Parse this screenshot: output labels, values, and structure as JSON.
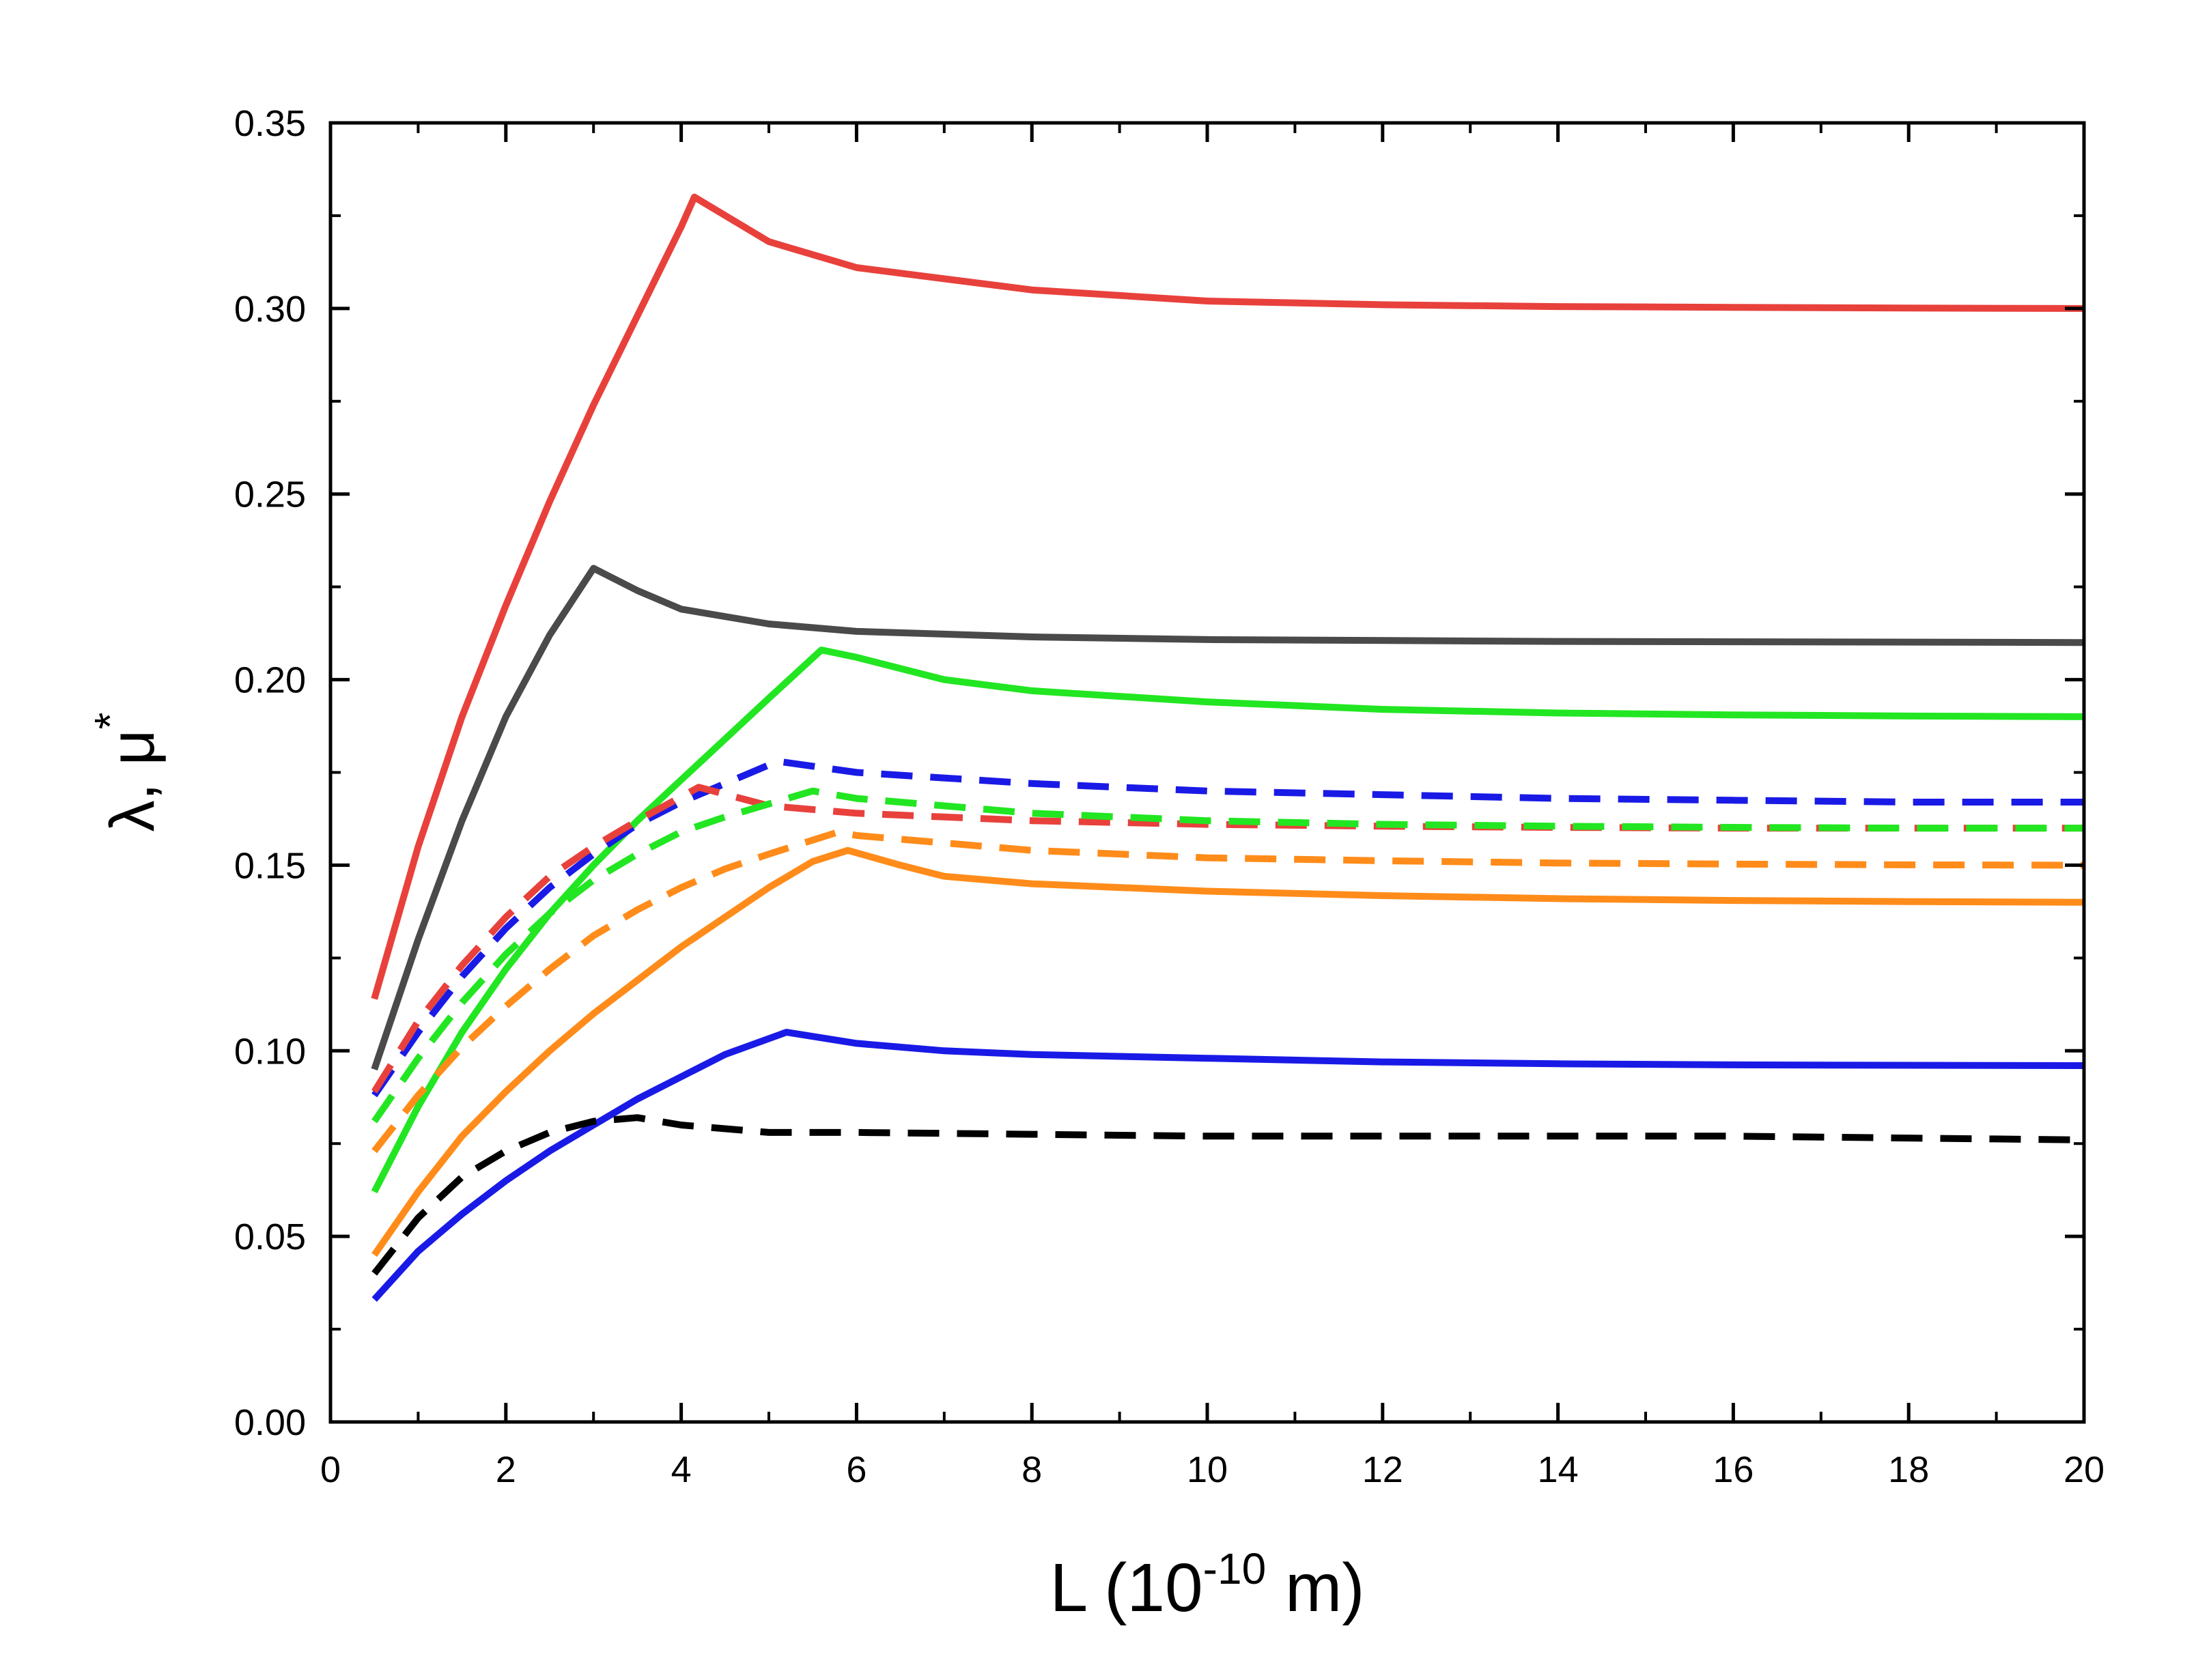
{
  "chart_data": {
    "type": "line",
    "title": "",
    "xlabel": {
      "main": "L  (10",
      "sup": "-10",
      "tail": " m)"
    },
    "ylabel": {
      "main": "λ, μ",
      "sup": "*"
    },
    "xlim": [
      0,
      20
    ],
    "ylim": [
      0,
      0.35
    ],
    "x_ticks": [
      0,
      2,
      4,
      6,
      8,
      10,
      12,
      14,
      16,
      18,
      20
    ],
    "x_tick_labels": [
      "0",
      "2",
      "4",
      "6",
      "8",
      "10",
      "12",
      "14",
      "16",
      "18",
      "20"
    ],
    "y_ticks": [
      0,
      0.05,
      0.1,
      0.15,
      0.2,
      0.25,
      0.3,
      0.35
    ],
    "y_tick_labels": [
      "0.00",
      "0.05",
      "0.10",
      "0.15",
      "0.20",
      "0.25",
      "0.30",
      "0.35"
    ],
    "grid": false,
    "legend": "none",
    "series": [
      {
        "name": "red-solid",
        "color": "#e8413c",
        "style": "solid",
        "x": [
          0.5,
          1,
          1.5,
          2,
          2.5,
          3,
          3.5,
          4,
          4.15,
          5,
          6,
          8,
          10,
          12,
          14,
          16,
          18,
          20
        ],
        "y": [
          0.114,
          0.155,
          0.19,
          0.22,
          0.248,
          0.274,
          0.298,
          0.322,
          0.33,
          0.318,
          0.311,
          0.305,
          0.302,
          0.301,
          0.3005,
          0.3003,
          0.3001,
          0.3
        ]
      },
      {
        "name": "gray-solid",
        "color": "#4a4a4a",
        "style": "solid",
        "x": [
          0.5,
          1,
          1.5,
          2,
          2.5,
          3,
          3.5,
          4,
          5,
          6,
          8,
          10,
          14,
          20
        ],
        "y": [
          0.095,
          0.13,
          0.162,
          0.19,
          0.212,
          0.23,
          0.224,
          0.219,
          0.215,
          0.213,
          0.2115,
          0.2108,
          0.2103,
          0.21
        ]
      },
      {
        "name": "green-solid",
        "color": "#22e622",
        "style": "solid",
        "x": [
          0.5,
          1,
          1.5,
          2,
          2.5,
          3,
          3.5,
          4,
          4.5,
          5,
          5.6,
          6,
          7,
          8,
          10,
          12,
          14,
          16,
          18,
          20
        ],
        "y": [
          0.062,
          0.085,
          0.105,
          0.122,
          0.137,
          0.15,
          0.162,
          0.173,
          0.184,
          0.195,
          0.208,
          0.206,
          0.2,
          0.197,
          0.194,
          0.192,
          0.191,
          0.1905,
          0.1902,
          0.19
        ]
      },
      {
        "name": "blue-dashed",
        "color": "#1a1ae6",
        "style": "dashed",
        "x": [
          0.5,
          1,
          1.5,
          2,
          2.5,
          3,
          3.5,
          4,
          4.5,
          5.1,
          6,
          8,
          10,
          12,
          14,
          16,
          18,
          20
        ],
        "y": [
          0.088,
          0.105,
          0.12,
          0.133,
          0.144,
          0.153,
          0.161,
          0.167,
          0.172,
          0.178,
          0.175,
          0.172,
          0.17,
          0.169,
          0.168,
          0.1675,
          0.167,
          0.167
        ]
      },
      {
        "name": "red-dashed",
        "color": "#e8413c",
        "style": "dashed",
        "x": [
          0.5,
          1,
          1.5,
          2,
          2.5,
          3,
          3.5,
          4.2,
          5,
          6,
          8,
          10,
          12,
          14,
          16,
          18,
          20
        ],
        "y": [
          0.089,
          0.108,
          0.123,
          0.136,
          0.147,
          0.155,
          0.162,
          0.171,
          0.166,
          0.164,
          0.162,
          0.161,
          0.1605,
          0.1602,
          0.16,
          0.16,
          0.16
        ]
      },
      {
        "name": "green-dashed",
        "color": "#22e622",
        "style": "dashed",
        "x": [
          0.5,
          1,
          1.5,
          2,
          2.5,
          3,
          3.5,
          4,
          4.5,
          5.5,
          6,
          8,
          10,
          12,
          14,
          16,
          18,
          20
        ],
        "y": [
          0.081,
          0.098,
          0.113,
          0.126,
          0.137,
          0.146,
          0.153,
          0.159,
          0.163,
          0.17,
          0.168,
          0.164,
          0.162,
          0.161,
          0.1605,
          0.1602,
          0.16,
          0.16
        ]
      },
      {
        "name": "orange-dashed",
        "color": "#ff8c1a",
        "style": "dashed",
        "x": [
          0.5,
          1,
          1.5,
          2,
          2.5,
          3,
          3.5,
          4,
          4.5,
          5,
          5.8,
          6,
          8,
          10,
          12,
          14,
          16,
          18,
          20
        ],
        "y": [
          0.073,
          0.088,
          0.101,
          0.112,
          0.122,
          0.131,
          0.138,
          0.144,
          0.149,
          0.153,
          0.159,
          0.158,
          0.154,
          0.152,
          0.1512,
          0.1506,
          0.1503,
          0.1501,
          0.15
        ]
      },
      {
        "name": "orange-solid",
        "color": "#ff8c1a",
        "style": "solid",
        "x": [
          0.5,
          1,
          1.5,
          2,
          2.5,
          3,
          3.5,
          4,
          4.5,
          5,
          5.5,
          5.9,
          6.5,
          7,
          8,
          10,
          12,
          14,
          16,
          18,
          20
        ],
        "y": [
          0.045,
          0.062,
          0.077,
          0.089,
          0.1,
          0.11,
          0.119,
          0.128,
          0.136,
          0.144,
          0.151,
          0.154,
          0.15,
          0.147,
          0.145,
          0.143,
          0.1418,
          0.141,
          0.1405,
          0.1402,
          0.14
        ]
      },
      {
        "name": "blue-solid",
        "color": "#1a1ae6",
        "style": "solid",
        "x": [
          0.5,
          1,
          1.5,
          2,
          2.5,
          3,
          3.5,
          4,
          4.5,
          5.2,
          6,
          7,
          8,
          10,
          12,
          14,
          16,
          18,
          20
        ],
        "y": [
          0.033,
          0.046,
          0.056,
          0.065,
          0.073,
          0.08,
          0.087,
          0.093,
          0.099,
          0.105,
          0.102,
          0.1,
          0.099,
          0.098,
          0.097,
          0.0965,
          0.0962,
          0.0961,
          0.096
        ]
      },
      {
        "name": "black-dashed",
        "color": "#000000",
        "style": "dashed",
        "x": [
          0.5,
          1,
          1.5,
          2,
          2.5,
          3,
          3.5,
          4,
          5,
          6,
          8,
          10,
          12,
          14,
          16,
          18,
          20
        ],
        "y": [
          0.04,
          0.055,
          0.066,
          0.073,
          0.078,
          0.081,
          0.082,
          0.08,
          0.078,
          0.078,
          0.0775,
          0.077,
          0.077,
          0.077,
          0.077,
          0.0765,
          0.076
        ]
      }
    ]
  }
}
